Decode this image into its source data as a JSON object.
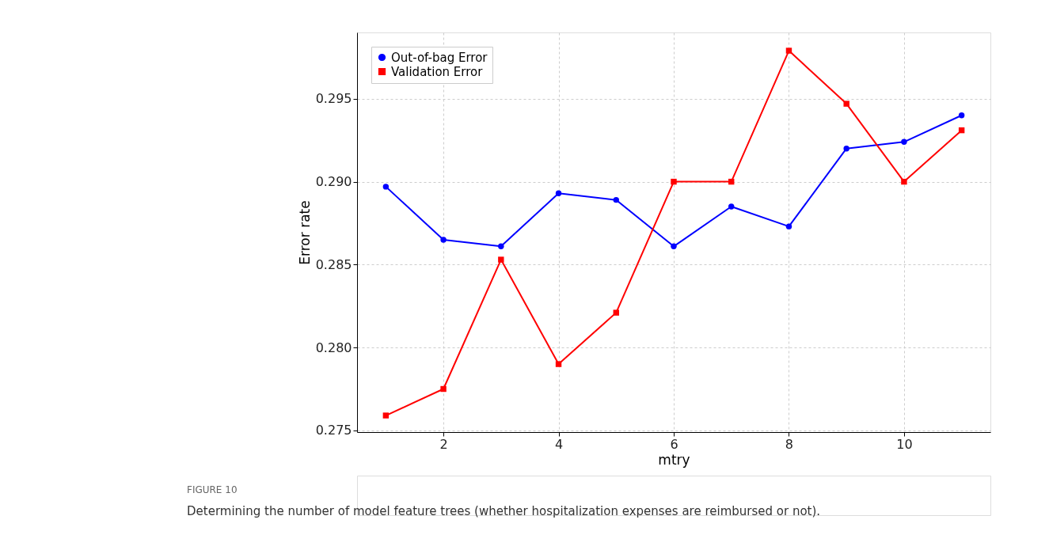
{
  "chart_data": {
    "type": "line",
    "xlabel": "mtry",
    "ylabel": "Error rate",
    "x": [
      1,
      2,
      3,
      4,
      5,
      6,
      7,
      8,
      9,
      10,
      11
    ],
    "series": [
      {
        "name": "Out-of-bag Error",
        "color": "#0000ff",
        "marker": "circle",
        "values": [
          0.2897,
          0.2865,
          0.2861,
          0.2893,
          0.2889,
          0.2861,
          0.2885,
          0.2873,
          0.292,
          0.2924,
          0.294
        ]
      },
      {
        "name": "Validation Error",
        "color": "#ff0000",
        "marker": "square",
        "values": [
          0.2759,
          0.2775,
          0.2853,
          0.279,
          0.2821,
          0.29,
          0.29,
          0.2979,
          0.2947,
          0.29,
          0.2931
        ]
      }
    ],
    "xlim": [
      0.5,
      11.5
    ],
    "xticks": [
      2,
      4,
      6,
      8,
      10
    ],
    "ylim": [
      0.2749,
      0.299
    ],
    "yticks": [
      {
        "value": 0.275,
        "label": "0.275"
      },
      {
        "value": 0.28,
        "label": "0.280"
      },
      {
        "value": 0.285,
        "label": "0.285"
      },
      {
        "value": 0.29,
        "label": "0.290"
      },
      {
        "value": 0.295,
        "label": "0.295"
      }
    ],
    "grid": true,
    "legend": "top left",
    "line_style": "solid",
    "annotations": [
      "FIGURE 10",
      "Determining the number of model feature trees (whether hospitalization expenses are reimbursed or not)."
    ]
  }
}
